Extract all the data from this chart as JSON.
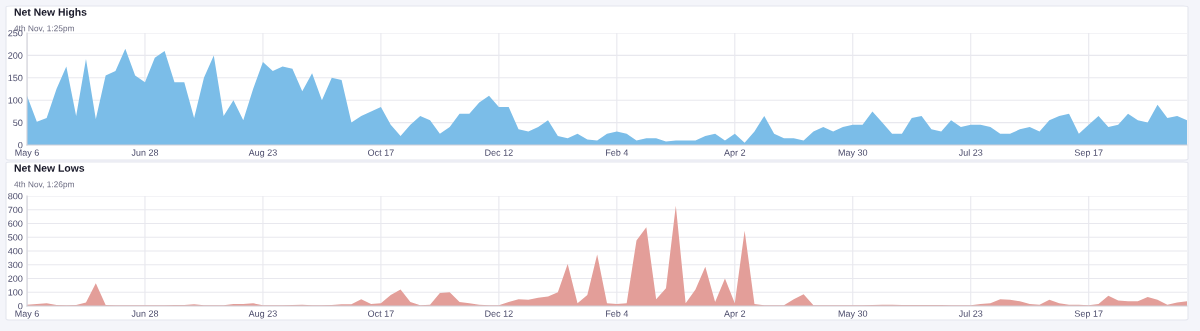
{
  "chart_data": [
    {
      "type": "area",
      "title": "Net New Highs",
      "subtitle": "4th Nov, 1:25pm",
      "grid": true,
      "ylim": [
        0,
        250
      ],
      "yticks": [
        0,
        50,
        100,
        150,
        200,
        250
      ],
      "categories": [
        "May 6",
        null,
        null,
        null,
        null,
        null,
        null,
        null,
        null,
        null,
        null,
        null,
        "Jun 28",
        null,
        null,
        null,
        null,
        null,
        null,
        null,
        null,
        null,
        null,
        null,
        "Aug 23",
        null,
        null,
        null,
        null,
        null,
        null,
        null,
        null,
        null,
        null,
        null,
        "Oct 17",
        null,
        null,
        null,
        null,
        null,
        null,
        null,
        null,
        null,
        null,
        null,
        "Dec 12",
        null,
        null,
        null,
        null,
        null,
        null,
        null,
        null,
        null,
        null,
        null,
        "Feb 4",
        null,
        null,
        null,
        null,
        null,
        null,
        null,
        null,
        null,
        null,
        null,
        "Apr 2",
        null,
        null,
        null,
        null,
        null,
        null,
        null,
        null,
        null,
        null,
        null,
        "May 30",
        null,
        null,
        null,
        null,
        null,
        null,
        null,
        null,
        null,
        null,
        null,
        "Jul 23",
        null,
        null,
        null,
        null,
        null,
        null,
        null,
        null,
        null,
        null,
        null,
        "Sep 17",
        null,
        null,
        null,
        null,
        null,
        null,
        null,
        null,
        null,
        null
      ],
      "series": [
        {
          "color": "#7bbde8",
          "values": [
            110,
            52,
            60,
            125,
            175,
            65,
            192,
            58,
            155,
            165,
            215,
            155,
            140,
            195,
            210,
            140,
            140,
            60,
            150,
            200,
            65,
            100,
            55,
            125,
            185,
            165,
            175,
            170,
            120,
            160,
            100,
            150,
            145,
            50,
            65,
            75,
            85,
            45,
            20,
            45,
            65,
            55,
            25,
            40,
            70,
            70,
            95,
            110,
            85,
            85,
            35,
            30,
            40,
            55,
            20,
            15,
            25,
            12,
            10,
            25,
            30,
            25,
            10,
            15,
            15,
            8,
            10,
            10,
            10,
            20,
            25,
            10,
            25,
            5,
            30,
            65,
            25,
            15,
            15,
            10,
            30,
            40,
            30,
            40,
            45,
            45,
            75,
            50,
            25,
            25,
            60,
            65,
            35,
            30,
            55,
            40,
            45,
            45,
            40,
            25,
            25,
            35,
            40,
            30,
            55,
            65,
            70,
            25,
            45,
            65,
            40,
            45,
            70,
            55,
            50,
            90,
            60,
            65,
            55
          ]
        }
      ]
    },
    {
      "type": "area",
      "title": "Net New Lows",
      "subtitle": "4th Nov, 1:26pm",
      "grid": true,
      "ylim": [
        0,
        800
      ],
      "yticks": [
        0,
        100,
        200,
        300,
        400,
        500,
        600,
        700,
        800
      ],
      "categories": [
        "May 6",
        null,
        null,
        null,
        null,
        null,
        null,
        null,
        null,
        null,
        null,
        null,
        "Jun 28",
        null,
        null,
        null,
        null,
        null,
        null,
        null,
        null,
        null,
        null,
        null,
        "Aug 23",
        null,
        null,
        null,
        null,
        null,
        null,
        null,
        null,
        null,
        null,
        null,
        "Oct 17",
        null,
        null,
        null,
        null,
        null,
        null,
        null,
        null,
        null,
        null,
        null,
        "Dec 12",
        null,
        null,
        null,
        null,
        null,
        null,
        null,
        null,
        null,
        null,
        null,
        "Feb 4",
        null,
        null,
        null,
        null,
        null,
        null,
        null,
        null,
        null,
        null,
        null,
        "Apr 2",
        null,
        null,
        null,
        null,
        null,
        null,
        null,
        null,
        null,
        null,
        null,
        "May 30",
        null,
        null,
        null,
        null,
        null,
        null,
        null,
        null,
        null,
        null,
        null,
        "Jul 23",
        null,
        null,
        null,
        null,
        null,
        null,
        null,
        null,
        null,
        null,
        null,
        "Sep 17",
        null,
        null,
        null,
        null,
        null,
        null,
        null,
        null,
        null,
        null
      ],
      "series": [
        {
          "color": "#e39e99",
          "values": [
            10,
            15,
            20,
            8,
            5,
            8,
            25,
            165,
            8,
            5,
            5,
            5,
            5,
            5,
            5,
            8,
            8,
            12,
            5,
            5,
            5,
            15,
            15,
            20,
            5,
            5,
            5,
            8,
            10,
            5,
            5,
            8,
            12,
            12,
            50,
            15,
            20,
            80,
            120,
            30,
            5,
            10,
            95,
            100,
            30,
            20,
            10,
            5,
            5,
            30,
            50,
            45,
            60,
            70,
            100,
            305,
            20,
            80,
            375,
            20,
            15,
            20,
            477,
            573,
            50,
            130,
            729,
            20,
            120,
            285,
            30,
            200,
            20,
            548,
            15,
            5,
            5,
            5,
            50,
            85,
            5,
            5,
            5,
            5,
            5,
            5,
            8,
            10,
            10,
            8,
            8,
            8,
            8,
            8,
            5,
            5,
            5,
            15,
            20,
            50,
            45,
            35,
            15,
            10,
            45,
            20,
            10,
            10,
            5,
            15,
            75,
            40,
            35,
            35,
            65,
            45,
            10,
            25,
            35
          ]
        }
      ]
    }
  ]
}
